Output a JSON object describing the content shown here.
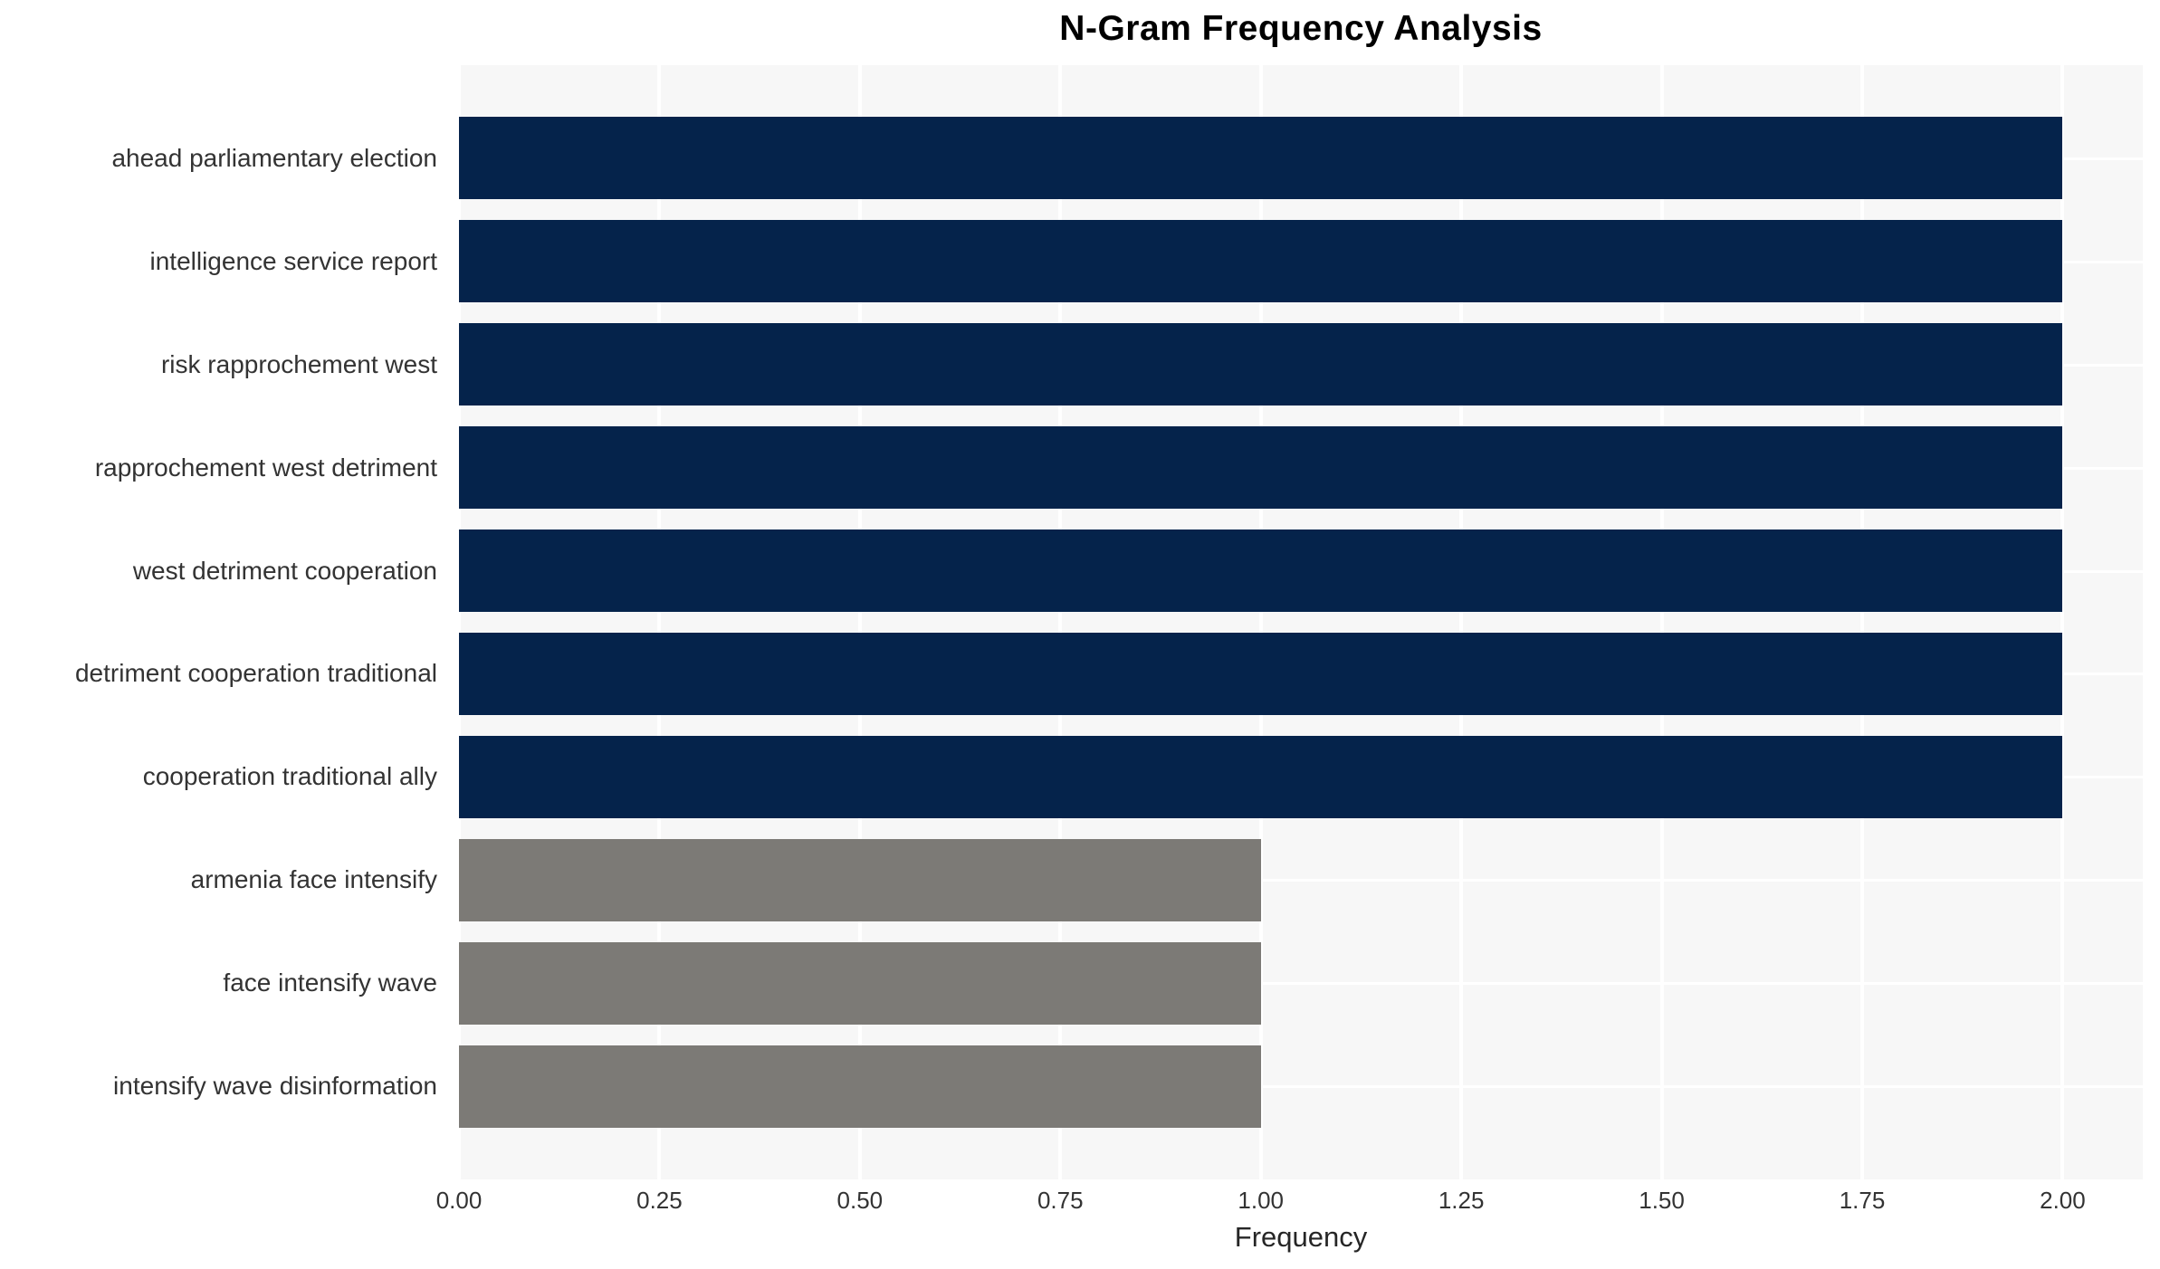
{
  "chart_data": {
    "type": "bar",
    "orientation": "horizontal",
    "title": "N-Gram Frequency Analysis",
    "xlabel": "Frequency",
    "ylabel": "",
    "categories": [
      "ahead parliamentary election",
      "intelligence service report",
      "risk rapprochement west",
      "rapprochement west detriment",
      "west detriment cooperation",
      "detriment cooperation traditional",
      "cooperation traditional ally",
      "armenia face intensify",
      "face intensify wave",
      "intensify wave disinformation"
    ],
    "values": [
      2,
      2,
      2,
      2,
      2,
      2,
      2,
      1,
      1,
      1
    ],
    "bar_colors": [
      "#05234b",
      "#05234b",
      "#05234b",
      "#05234b",
      "#05234b",
      "#05234b",
      "#05234b",
      "#7c7a76",
      "#7c7a76",
      "#7c7a76"
    ],
    "xlim": [
      0,
      2.1
    ],
    "xticks": [
      0,
      0.25,
      0.5,
      0.75,
      1.0,
      1.25,
      1.5,
      1.75,
      2.0
    ],
    "xtick_labels": [
      "0.00",
      "0.25",
      "0.50",
      "0.75",
      "1.00",
      "1.25",
      "1.50",
      "1.75",
      "2.00"
    ],
    "grid": true,
    "legend": false,
    "colors": {
      "plot_background": "#f7f7f7",
      "grid": "#ffffff",
      "bar_high": "#05234b",
      "bar_low": "#7c7a76",
      "tick_text": "#333333",
      "title_text": "#000000"
    }
  }
}
